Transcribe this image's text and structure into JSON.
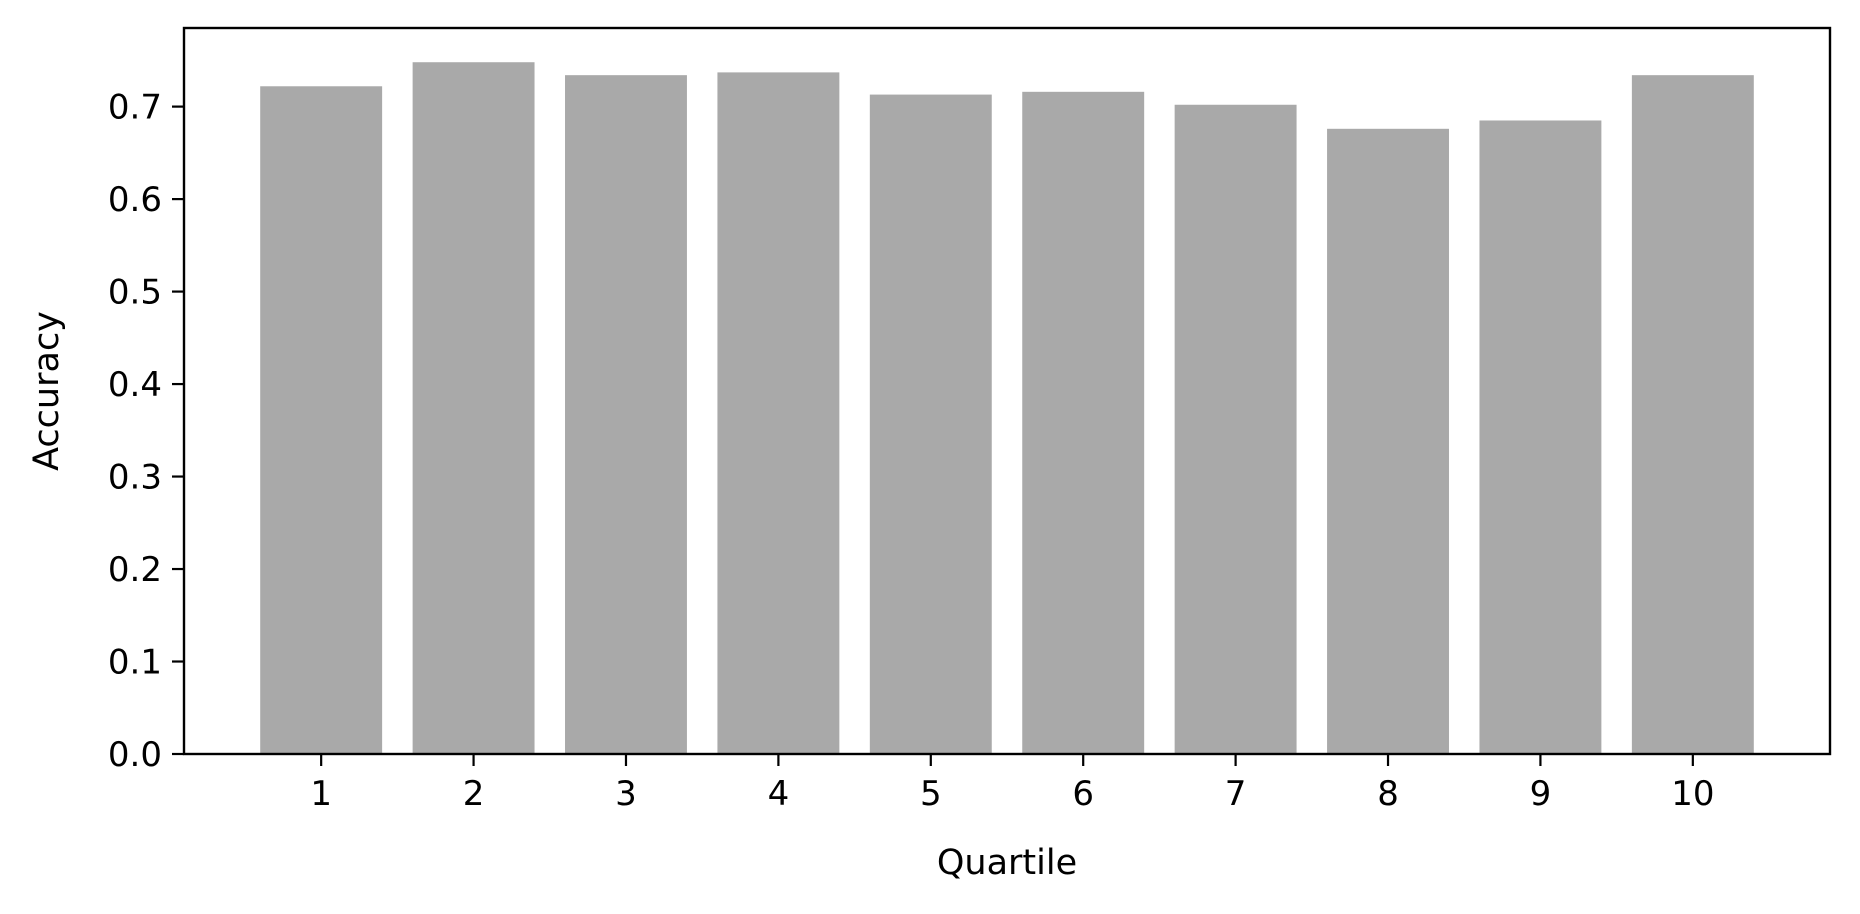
{
  "chart_data": {
    "type": "bar",
    "categories": [
      "1",
      "2",
      "3",
      "4",
      "5",
      "6",
      "7",
      "8",
      "9",
      "10"
    ],
    "values": [
      0.722,
      0.748,
      0.734,
      0.737,
      0.713,
      0.716,
      0.702,
      0.676,
      0.685,
      0.734
    ],
    "title": "",
    "xlabel": "Quartile",
    "ylabel": "Accuracy",
    "ylim": [
      0,
      0.785
    ],
    "yticks": [
      "0.0",
      "0.1",
      "0.2",
      "0.3",
      "0.4",
      "0.5",
      "0.6",
      "0.7"
    ],
    "grid": false,
    "bar_color": "#a9a9a9"
  }
}
